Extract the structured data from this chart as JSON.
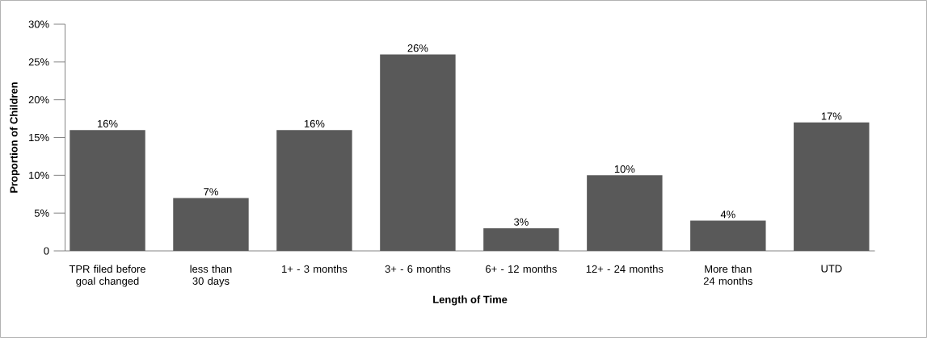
{
  "chart_data": {
    "type": "bar",
    "xlabel": "Length of Time",
    "ylabel": "Proportion of Children",
    "categories": [
      "TPR filed before goal changed",
      "less than 30 days",
      "1+ - 3 months",
      "3+ - 6 months",
      "6+ - 12 months",
      "12+ - 24 months",
      "More than 24 months",
      "UTD"
    ],
    "values": [
      16,
      7,
      16,
      26,
      3,
      10,
      4,
      17
    ],
    "value_labels": [
      "16%",
      "7%",
      "16%",
      "26%",
      "3%",
      "10%",
      "4%",
      "17%"
    ],
    "color": "#595959",
    "ylim": [
      0,
      30
    ],
    "yticks": [
      {
        "value": 0,
        "label": "0"
      },
      {
        "value": 5,
        "label": "5%"
      },
      {
        "value": 10,
        "label": "10%"
      },
      {
        "value": 15,
        "label": "15%"
      },
      {
        "value": 20,
        "label": "20%"
      },
      {
        "value": 25,
        "label": "25%"
      },
      {
        "value": 30,
        "label": "30%"
      }
    ]
  }
}
